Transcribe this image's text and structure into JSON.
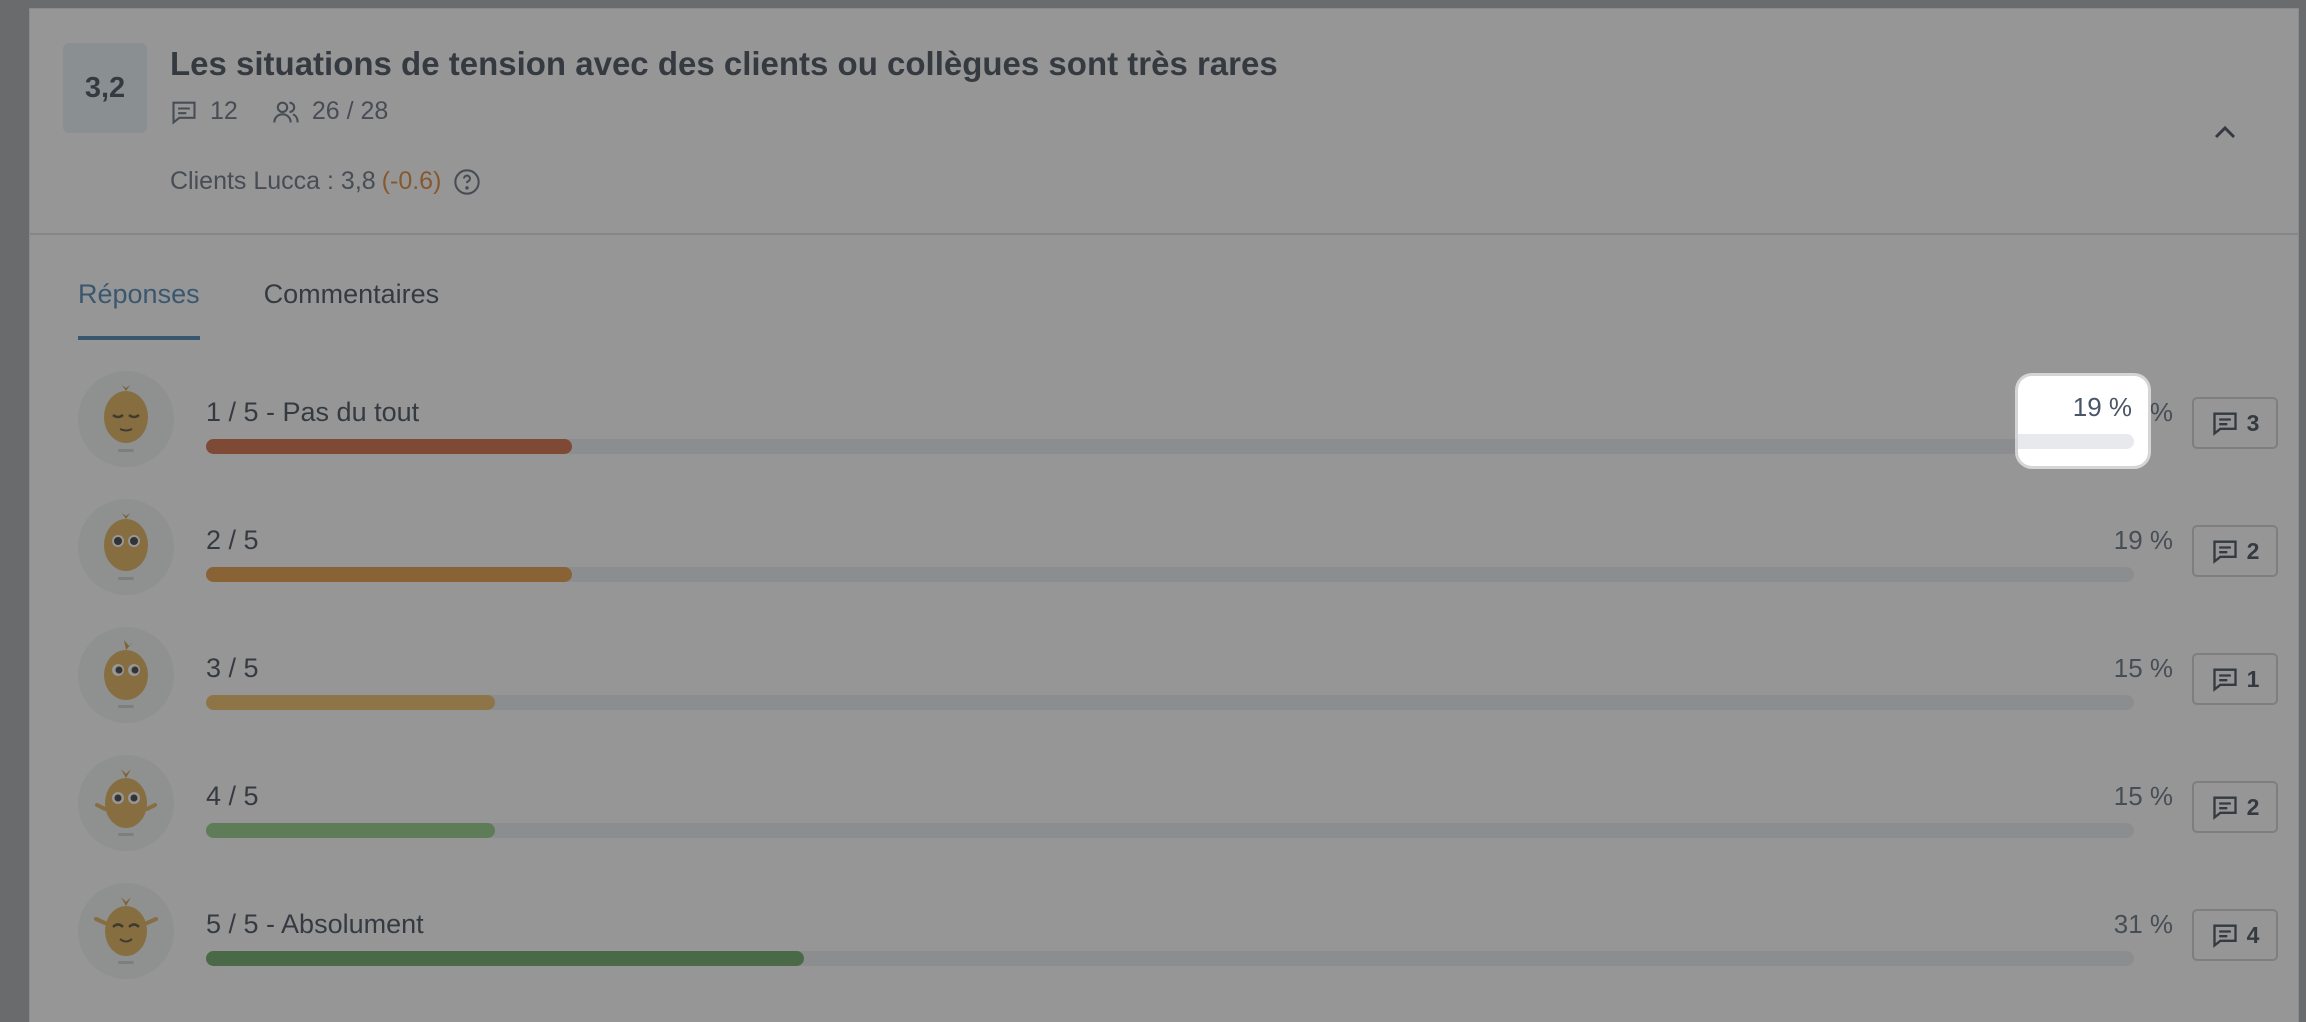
{
  "question": {
    "score": "3,2",
    "title": "Les situations de tension avec des clients ou collègues sont très rares",
    "comments_count": "12",
    "participants": "26 / 28",
    "benchmark_label": "Clients Lucca : 3,8",
    "benchmark_delta": "(-0.6)"
  },
  "tabs": [
    {
      "label": "Réponses",
      "active": true
    },
    {
      "label": "Commentaires",
      "active": false
    }
  ],
  "answers": [
    {
      "label": "1 / 5 - Pas du tout",
      "percent_text": "19 %",
      "percent": 19,
      "comments": "3",
      "color": "#c8501f"
    },
    {
      "label": "2 / 5",
      "percent_text": "19 %",
      "percent": 19,
      "comments": "2",
      "color": "#e08a22"
    },
    {
      "label": "3 / 5",
      "percent_text": "15 %",
      "percent": 15,
      "comments": "1",
      "color": "#e9b34c"
    },
    {
      "label": "4 / 5",
      "percent_text": "15 %",
      "percent": 15,
      "comments": "2",
      "color": "#7fc36f"
    },
    {
      "label": "5 / 5 - Absolument",
      "percent_text": "31 %",
      "percent": 31,
      "comments": "4",
      "color": "#4f9a48"
    }
  ],
  "highlight": {
    "percent_text": "19 %"
  },
  "icons": {
    "comments": "comment-icon",
    "participants": "users-icon",
    "help": "help-circle-icon",
    "collapse": "chevron-up-icon"
  }
}
